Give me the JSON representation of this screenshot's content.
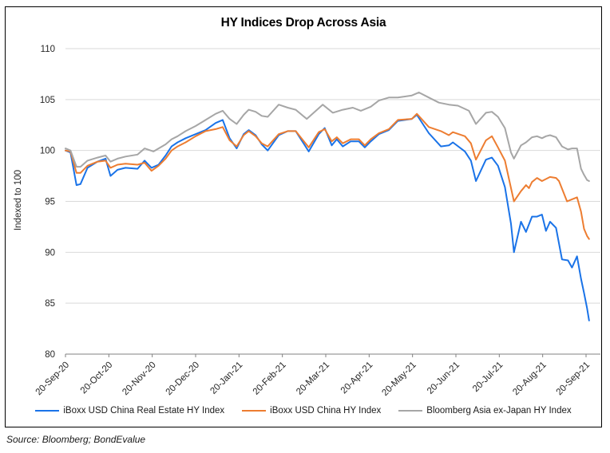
{
  "chart_data": {
    "type": "line",
    "title": "HY Indices Drop Across Asia",
    "ylabel": "Indexed to 100",
    "xlabel": "",
    "ylim": [
      80,
      110
    ],
    "y_ticks": [
      80,
      85,
      90,
      95,
      100,
      105,
      110
    ],
    "x_tick_labels": [
      "20-Sep-20",
      "20-Oct-20",
      "20-Nov-20",
      "20-Dec-20",
      "20-Jan-21",
      "20-Feb-21",
      "20-Mar-21",
      "20-Apr-21",
      "20-May-21",
      "20-Jun-21",
      "20-Jul-21",
      "20-Aug-21",
      "20-Sep-21"
    ],
    "x_unit": "weeks since 20-Sep-20",
    "x_range_weeks": [
      0,
      52.3
    ],
    "grid": "horizontal-only",
    "legend_position": "bottom",
    "series": [
      {
        "name": "iBoxx USD China Real Estate HY Index",
        "color": "#1A73E8",
        "points": [
          [
            0,
            100.0
          ],
          [
            0.5,
            99.8
          ],
          [
            1.1,
            96.6
          ],
          [
            1.5,
            96.7
          ],
          [
            2.2,
            98.3
          ],
          [
            3.2,
            98.9
          ],
          [
            4.0,
            99.2
          ],
          [
            4.5,
            97.5
          ],
          [
            5.2,
            98.1
          ],
          [
            6.0,
            98.3
          ],
          [
            7.2,
            98.2
          ],
          [
            7.9,
            99.0
          ],
          [
            8.6,
            98.3
          ],
          [
            9.3,
            98.6
          ],
          [
            10.0,
            99.5
          ],
          [
            10.6,
            100.4
          ],
          [
            11.2,
            100.8
          ],
          [
            12.0,
            101.2
          ],
          [
            13.0,
            101.6
          ],
          [
            14.0,
            102.0
          ],
          [
            15.0,
            102.7
          ],
          [
            15.7,
            103.0
          ],
          [
            16.4,
            101.2
          ],
          [
            17.1,
            100.2
          ],
          [
            17.8,
            101.6
          ],
          [
            18.3,
            102.0
          ],
          [
            19.0,
            101.5
          ],
          [
            19.6,
            100.6
          ],
          [
            20.2,
            100.0
          ],
          [
            21.3,
            101.5
          ],
          [
            22.2,
            101.9
          ],
          [
            23.0,
            101.9
          ],
          [
            24.3,
            99.9
          ],
          [
            25.3,
            101.6
          ],
          [
            25.9,
            102.2
          ],
          [
            26.6,
            100.5
          ],
          [
            27.1,
            101.1
          ],
          [
            27.7,
            100.4
          ],
          [
            28.5,
            100.9
          ],
          [
            29.3,
            100.9
          ],
          [
            29.9,
            100.3
          ],
          [
            30.5,
            100.9
          ],
          [
            31.3,
            101.6
          ],
          [
            32.3,
            102.0
          ],
          [
            33.2,
            102.9
          ],
          [
            34.6,
            103.1
          ],
          [
            35.1,
            103.5
          ],
          [
            36.3,
            101.7
          ],
          [
            37.5,
            100.4
          ],
          [
            38.3,
            100.5
          ],
          [
            38.7,
            100.8
          ],
          [
            39.9,
            99.9
          ],
          [
            40.5,
            99.0
          ],
          [
            41.0,
            97.0
          ],
          [
            42.0,
            99.1
          ],
          [
            42.6,
            99.3
          ],
          [
            43.2,
            98.5
          ],
          [
            43.9,
            96.4
          ],
          [
            44.5,
            92.8
          ],
          [
            44.8,
            90.0
          ],
          [
            45.5,
            93.0
          ],
          [
            46.0,
            92.0
          ],
          [
            46.6,
            93.5
          ],
          [
            47.1,
            93.5
          ],
          [
            47.6,
            93.7
          ],
          [
            48.0,
            92.1
          ],
          [
            48.4,
            93.0
          ],
          [
            49.0,
            92.4
          ],
          [
            49.6,
            89.3
          ],
          [
            50.2,
            89.2
          ],
          [
            50.6,
            88.5
          ],
          [
            51.1,
            89.6
          ],
          [
            51.5,
            87.4
          ],
          [
            51.8,
            86.0
          ],
          [
            52.1,
            84.5
          ],
          [
            52.3,
            83.3
          ]
        ]
      },
      {
        "name": "iBoxx USD China HY Index",
        "color": "#ED7D31",
        "points": [
          [
            0,
            100.0
          ],
          [
            0.5,
            99.9
          ],
          [
            1.1,
            97.8
          ],
          [
            1.5,
            97.8
          ],
          [
            2.2,
            98.5
          ],
          [
            3.2,
            98.9
          ],
          [
            4.0,
            99.0
          ],
          [
            4.5,
            98.3
          ],
          [
            5.2,
            98.6
          ],
          [
            6.0,
            98.7
          ],
          [
            7.2,
            98.6
          ],
          [
            7.9,
            98.8
          ],
          [
            8.6,
            98.0
          ],
          [
            9.3,
            98.5
          ],
          [
            10.0,
            99.2
          ],
          [
            10.6,
            100.0
          ],
          [
            11.2,
            100.4
          ],
          [
            12.0,
            100.8
          ],
          [
            13.0,
            101.4
          ],
          [
            14.0,
            101.9
          ],
          [
            15.0,
            102.1
          ],
          [
            15.7,
            102.3
          ],
          [
            16.4,
            101.0
          ],
          [
            17.1,
            100.4
          ],
          [
            17.8,
            101.5
          ],
          [
            18.3,
            101.9
          ],
          [
            19.0,
            101.4
          ],
          [
            19.6,
            100.7
          ],
          [
            20.2,
            100.4
          ],
          [
            21.3,
            101.6
          ],
          [
            22.2,
            101.9
          ],
          [
            23.0,
            101.9
          ],
          [
            24.3,
            100.3
          ],
          [
            25.3,
            101.8
          ],
          [
            25.9,
            102.1
          ],
          [
            26.6,
            100.9
          ],
          [
            27.1,
            101.3
          ],
          [
            27.7,
            100.7
          ],
          [
            28.5,
            101.1
          ],
          [
            29.3,
            101.1
          ],
          [
            29.9,
            100.5
          ],
          [
            30.5,
            101.1
          ],
          [
            31.3,
            101.7
          ],
          [
            32.3,
            102.1
          ],
          [
            33.2,
            103.0
          ],
          [
            34.6,
            103.1
          ],
          [
            35.1,
            103.6
          ],
          [
            36.3,
            102.3
          ],
          [
            37.5,
            101.9
          ],
          [
            38.3,
            101.5
          ],
          [
            38.7,
            101.8
          ],
          [
            39.9,
            101.4
          ],
          [
            40.5,
            100.7
          ],
          [
            41.0,
            99.1
          ],
          [
            42.0,
            101.0
          ],
          [
            42.6,
            101.4
          ],
          [
            43.2,
            100.3
          ],
          [
            43.9,
            99.0
          ],
          [
            44.5,
            96.3
          ],
          [
            44.8,
            95.0
          ],
          [
            45.5,
            96.0
          ],
          [
            46.0,
            96.6
          ],
          [
            46.3,
            96.3
          ],
          [
            46.6,
            96.9
          ],
          [
            47.1,
            97.3
          ],
          [
            47.6,
            97.0
          ],
          [
            48.4,
            97.4
          ],
          [
            49.0,
            97.3
          ],
          [
            49.3,
            97.0
          ],
          [
            50.1,
            95.0
          ],
          [
            50.6,
            95.2
          ],
          [
            51.1,
            95.4
          ],
          [
            51.5,
            94.0
          ],
          [
            51.8,
            92.3
          ],
          [
            52.1,
            91.6
          ],
          [
            52.3,
            91.3
          ]
        ]
      },
      {
        "name": "Bloomberg Asia ex-Japan HY Index",
        "color": "#A6A6A6",
        "points": [
          [
            0,
            100.2
          ],
          [
            0.5,
            100.0
          ],
          [
            1.1,
            98.4
          ],
          [
            1.5,
            98.4
          ],
          [
            2.2,
            99.0
          ],
          [
            3.2,
            99.3
          ],
          [
            4.0,
            99.5
          ],
          [
            4.5,
            98.9
          ],
          [
            5.2,
            99.2
          ],
          [
            6.0,
            99.4
          ],
          [
            7.2,
            99.6
          ],
          [
            7.9,
            100.2
          ],
          [
            8.8,
            99.9
          ],
          [
            10.0,
            100.6
          ],
          [
            10.6,
            101.1
          ],
          [
            11.2,
            101.4
          ],
          [
            12.0,
            101.9
          ],
          [
            13.0,
            102.4
          ],
          [
            14.0,
            103.0
          ],
          [
            15.0,
            103.6
          ],
          [
            15.7,
            103.9
          ],
          [
            16.4,
            103.1
          ],
          [
            17.1,
            102.6
          ],
          [
            17.8,
            103.5
          ],
          [
            18.3,
            104.0
          ],
          [
            19.0,
            103.8
          ],
          [
            19.6,
            103.4
          ],
          [
            20.2,
            103.3
          ],
          [
            21.3,
            104.5
          ],
          [
            22.2,
            104.2
          ],
          [
            23.0,
            104.0
          ],
          [
            24.1,
            103.1
          ],
          [
            25.7,
            104.5
          ],
          [
            26.7,
            103.7
          ],
          [
            27.7,
            104.0
          ],
          [
            28.7,
            104.2
          ],
          [
            29.5,
            103.9
          ],
          [
            30.5,
            104.3
          ],
          [
            31.3,
            104.9
          ],
          [
            32.3,
            105.2
          ],
          [
            33.2,
            105.2
          ],
          [
            34.6,
            105.4
          ],
          [
            35.3,
            105.7
          ],
          [
            36.3,
            105.2
          ],
          [
            37.3,
            104.7
          ],
          [
            38.3,
            104.5
          ],
          [
            39.2,
            104.4
          ],
          [
            40.3,
            103.9
          ],
          [
            41.0,
            102.6
          ],
          [
            42.0,
            103.7
          ],
          [
            42.6,
            103.8
          ],
          [
            43.2,
            103.3
          ],
          [
            43.9,
            102.2
          ],
          [
            44.5,
            99.8
          ],
          [
            44.8,
            99.2
          ],
          [
            45.5,
            100.5
          ],
          [
            46.0,
            100.8
          ],
          [
            46.6,
            101.3
          ],
          [
            47.1,
            101.4
          ],
          [
            47.6,
            101.2
          ],
          [
            48.0,
            101.4
          ],
          [
            48.4,
            101.5
          ],
          [
            49.0,
            101.3
          ],
          [
            49.6,
            100.4
          ],
          [
            50.2,
            100.1
          ],
          [
            50.6,
            100.2
          ],
          [
            51.1,
            100.2
          ],
          [
            51.5,
            98.2
          ],
          [
            51.8,
            97.6
          ],
          [
            52.1,
            97.1
          ],
          [
            52.3,
            97.0
          ]
        ]
      }
    ]
  },
  "source_note": "Source: Bloomberg; BondEvalue",
  "colors": {
    "grid": "#D9D9D9",
    "axis": "#808080",
    "tick_text": "#262626",
    "title_text": "#000000",
    "frame_border": "#000000"
  }
}
